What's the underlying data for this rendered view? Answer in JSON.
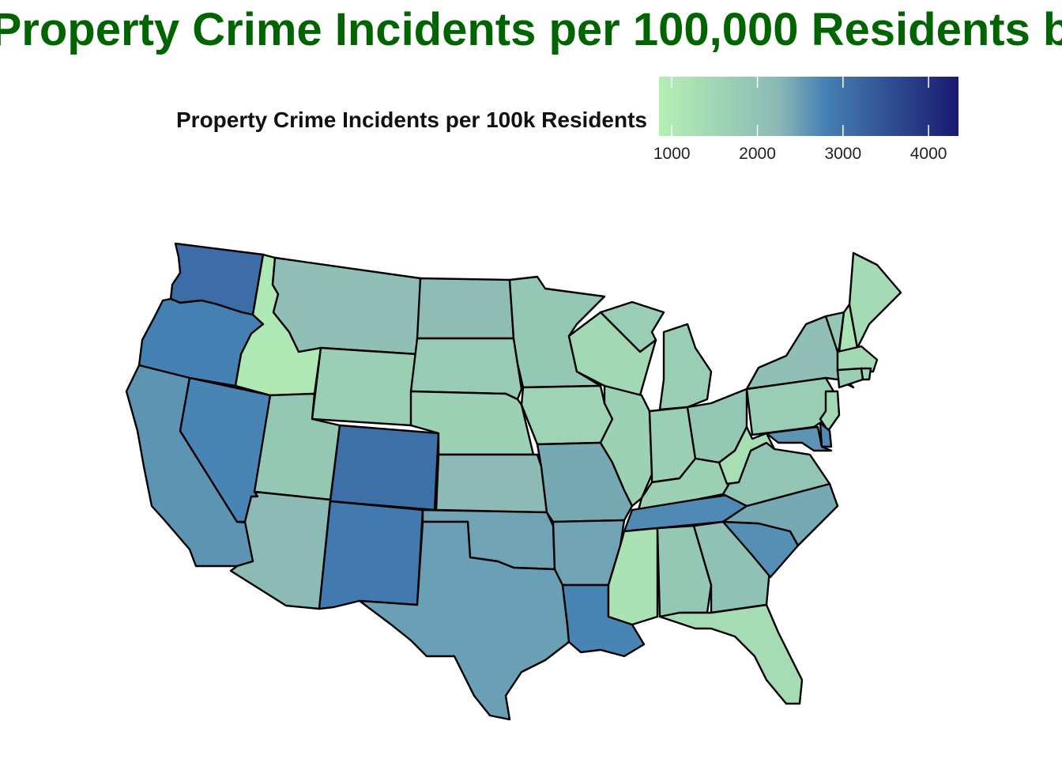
{
  "title": "Property Crime Incidents per 100,000 Residents b",
  "legend": {
    "title": "Property Crime Incidents per 100k Residents",
    "min": 850,
    "max": 4350,
    "ticks": [
      1000,
      2000,
      3000,
      4000
    ],
    "tick_labels": [
      "1000",
      "2000",
      "3000",
      "4000"
    ],
    "color_stops": [
      "#b4f0b4",
      "#8ab9b5",
      "#4682b4",
      "#191970"
    ]
  },
  "chart_data": {
    "type": "choropleth",
    "region": "Contiguous United States",
    "variable": "Property Crime Incidents per 100k Residents",
    "values": {
      "WA": 3100,
      "OR": 2800,
      "CA": 2600,
      "NV": 2750,
      "ID": 1050,
      "MT": 2100,
      "WY": 1700,
      "UT": 1900,
      "AZ": 2200,
      "CO": 3050,
      "NM": 2900,
      "ND": 2150,
      "SD": 1800,
      "NE": 1650,
      "KS": 2200,
      "OK": 2450,
      "TX": 2500,
      "MN": 1900,
      "IA": 1600,
      "MO": 2400,
      "AR": 2450,
      "LA": 2750,
      "WI": 1450,
      "IL": 1650,
      "MI": 1750,
      "IN": 1700,
      "OH": 1900,
      "KY": 1650,
      "TN": 2700,
      "MS": 1200,
      "AL": 1900,
      "GA": 2050,
      "FL": 1350,
      "SC": 2650,
      "NC": 2400,
      "VA": 1950,
      "WV": 1300,
      "PA": 1750,
      "NY": 2100,
      "VT": 1900,
      "NH": 1150,
      "ME": 1400,
      "MA": 1450,
      "CT": 1700,
      "RI": 1600,
      "NJ": 1450,
      "DE": 2700,
      "MD": 2600
    }
  }
}
